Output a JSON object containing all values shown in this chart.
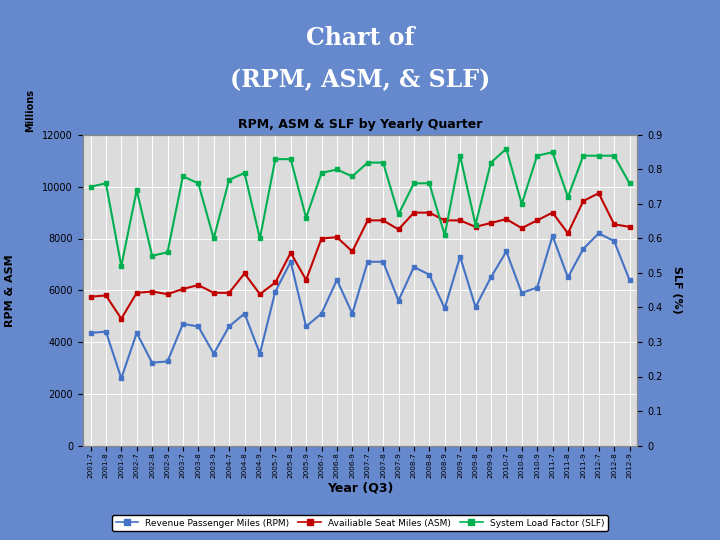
{
  "title_header_line1": "Chart of",
  "title_header_line2": "(RPM, ASM, & SLF)",
  "chart_title": "RPM, ASM & SLF by Yearly Quarter",
  "xlabel": "Year (Q3)",
  "ylabel_left": "RPM & ASM",
  "ylabel_left2": "Millions",
  "ylabel_right": "SLF (%)",
  "header_bg": "#6688cc",
  "header_text_color": "white",
  "chart_outer_bg": "#c8c8c8",
  "plot_bg": "#dcdcdc",
  "x_labels": [
    "2001-7",
    "2001-8",
    "2001-9",
    "2002-7",
    "2002-8",
    "2002-9",
    "2003-7",
    "2003-8",
    "2003-9",
    "2004-7",
    "2004-8",
    "2004-9",
    "2005-7",
    "2005-8",
    "2005-9",
    "2006-7",
    "2006-8",
    "2006-9",
    "2007-7",
    "2007-8",
    "2007-9",
    "2008-7",
    "2008-8",
    "2008-9",
    "2009-7",
    "2009-8",
    "2009-9",
    "2010-7",
    "2010-8",
    "2010-9",
    "2011-7",
    "2011-8",
    "2011-9",
    "2012-7",
    "2012-8",
    "2012-9"
  ],
  "rpm": [
    4350,
    4400,
    2600,
    4350,
    3200,
    3250,
    4700,
    4600,
    3550,
    4600,
    5100,
    3550,
    5950,
    7100,
    4600,
    5100,
    6400,
    5100,
    7100,
    7100,
    5600,
    6900,
    6600,
    5300,
    7300,
    5350,
    6500,
    7500,
    5900,
    6100,
    8100,
    6500,
    7600,
    8200,
    7900,
    6400
  ],
  "asm": [
    5750,
    5800,
    4900,
    5900,
    5950,
    5850,
    6050,
    6200,
    5900,
    5900,
    6650,
    5850,
    6300,
    7450,
    6400,
    8000,
    8050,
    7500,
    8700,
    8700,
    8350,
    9000,
    9000,
    8700,
    8700,
    8450,
    8600,
    8750,
    8400,
    8700,
    9000,
    8200,
    9450,
    9750,
    8550,
    8450
  ],
  "slf": [
    0.75,
    0.76,
    0.52,
    0.74,
    0.55,
    0.56,
    0.78,
    0.76,
    0.6,
    0.77,
    0.79,
    0.6,
    0.83,
    0.83,
    0.66,
    0.79,
    0.8,
    0.78,
    0.82,
    0.82,
    0.67,
    0.76,
    0.76,
    0.61,
    0.84,
    0.64,
    0.82,
    0.86,
    0.7,
    0.84,
    0.85,
    0.72,
    0.84,
    0.84,
    0.84,
    0.76
  ],
  "rpm_color": "#4472c4",
  "asm_color": "#c00000",
  "slf_color": "#00b050",
  "marker": "s",
  "linewidth": 1.5,
  "markersize": 3.5,
  "ylim_left": [
    0,
    12000
  ],
  "ylim_right": [
    0,
    0.9
  ],
  "yticks_left": [
    0,
    2000,
    4000,
    6000,
    8000,
    10000,
    12000
  ],
  "yticks_right": [
    0.0,
    0.1,
    0.2,
    0.3,
    0.4,
    0.5,
    0.6,
    0.7,
    0.8,
    0.9
  ],
  "legend_rpm": "Revenue Passenger Miles (RPM)",
  "legend_asm": "Availiable Seat Miles (ASM)",
  "legend_slf": "System Load Factor (SLF)"
}
